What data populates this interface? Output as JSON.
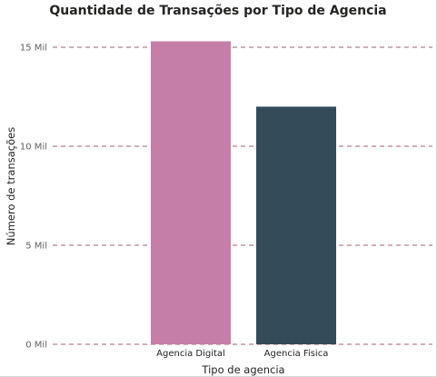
{
  "chart_data": {
    "type": "bar",
    "title": "Quantidade de Transações por Tipo de Agencia",
    "xlabel": "Tipo de agencia",
    "ylabel": "Número de transações",
    "categories": [
      "Agencia Digital",
      "Agencia Fisica"
    ],
    "values": [
      15300,
      12000
    ],
    "bar_colors": [
      "#c47ea8",
      "#344b5a"
    ],
    "gridline_color": "#a0606f",
    "ylim": [
      0,
      15000
    ],
    "yticks": [
      0,
      5000,
      10000,
      15000
    ],
    "ytick_labels": [
      "0 Mil",
      "5 Mil",
      "10 Mil",
      "15 Mil"
    ],
    "grid": true,
    "legend": "none"
  }
}
